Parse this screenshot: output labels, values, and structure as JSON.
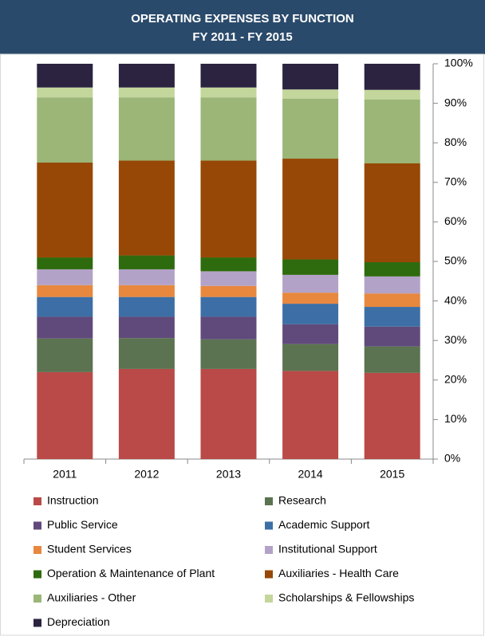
{
  "chart_data": {
    "type": "stacked_bar",
    "title": "OPERATING EXPENSES BY FUNCTION",
    "subtitle": "FY 2011 - FY 2015",
    "categories": [
      "2011",
      "2012",
      "2013",
      "2014",
      "2015"
    ],
    "series": [
      {
        "name": "Instruction",
        "color": "#b94a48",
        "values": [
          22,
          22.8,
          22.8,
          22.3,
          21.8
        ]
      },
      {
        "name": "Research",
        "color": "#5b7350",
        "values": [
          8.5,
          7.8,
          7.5,
          6.8,
          6.7
        ]
      },
      {
        "name": "Public Service",
        "color": "#604a7b",
        "values": [
          5.5,
          5.4,
          5.7,
          5,
          5
        ]
      },
      {
        "name": "Academic Support",
        "color": "#3d6fa6",
        "values": [
          5,
          5,
          5,
          5.2,
          5
        ]
      },
      {
        "name": "Student Services",
        "color": "#e7883e",
        "values": [
          3,
          3,
          2.8,
          2.8,
          3.4
        ]
      },
      {
        "name": "Institutional Support",
        "color": "#b3a2c7",
        "values": [
          4,
          4,
          3.7,
          4.5,
          4.3
        ]
      },
      {
        "name": "Operation & Maintenance of Plant",
        "color": "#2e6b0e",
        "values": [
          3,
          3.5,
          3.5,
          3.9,
          3.6
        ]
      },
      {
        "name": "Auxiliaries - Health Care",
        "color": "#974806",
        "values": [
          24,
          24,
          24.5,
          25.5,
          25
        ]
      },
      {
        "name": "Auxiliaries - Other",
        "color": "#9bb677",
        "values": [
          16.5,
          16,
          16,
          15.2,
          16.2
        ]
      },
      {
        "name": "Scholarships & Fellowships",
        "color": "#c3d69b",
        "values": [
          2.5,
          2.5,
          2.5,
          2.3,
          2.4
        ]
      },
      {
        "name": "Depreciation",
        "color": "#2b2340",
        "values": [
          6,
          6,
          6,
          6.5,
          6.6
        ]
      }
    ],
    "ylim": [
      0,
      100
    ],
    "yticks": [
      {
        "value": 0,
        "label": "0%"
      },
      {
        "value": 10,
        "label": "10%"
      },
      {
        "value": 20,
        "label": "20%"
      },
      {
        "value": 30,
        "label": "30%"
      },
      {
        "value": 40,
        "label": "40%"
      },
      {
        "value": 50,
        "label": "50%"
      },
      {
        "value": 60,
        "label": "60%"
      },
      {
        "value": 70,
        "label": "70%"
      },
      {
        "value": 80,
        "label": "80%"
      },
      {
        "value": 90,
        "label": "90%"
      },
      {
        "value": 100,
        "label": "100%"
      }
    ],
    "grid": false
  }
}
